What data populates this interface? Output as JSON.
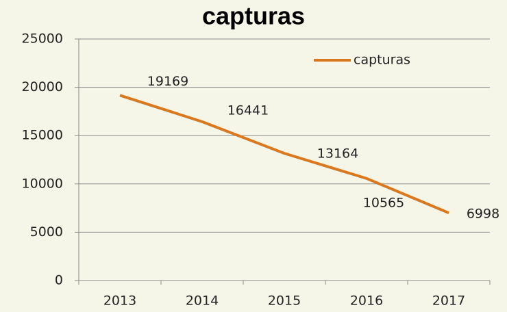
{
  "chart_data": {
    "type": "line",
    "title": "capturas",
    "categories": [
      "2013",
      "2014",
      "2015",
      "2016",
      "2017"
    ],
    "series": [
      {
        "name": "capturas",
        "color": "#d9781f",
        "values": [
          19169,
          16441,
          13164,
          10565,
          6998
        ]
      }
    ],
    "ylim": [
      0,
      25000
    ],
    "yticks": [
      0,
      5000,
      10000,
      15000,
      20000,
      25000
    ],
    "grid": true,
    "legend": "upper right",
    "data_labels": true
  }
}
